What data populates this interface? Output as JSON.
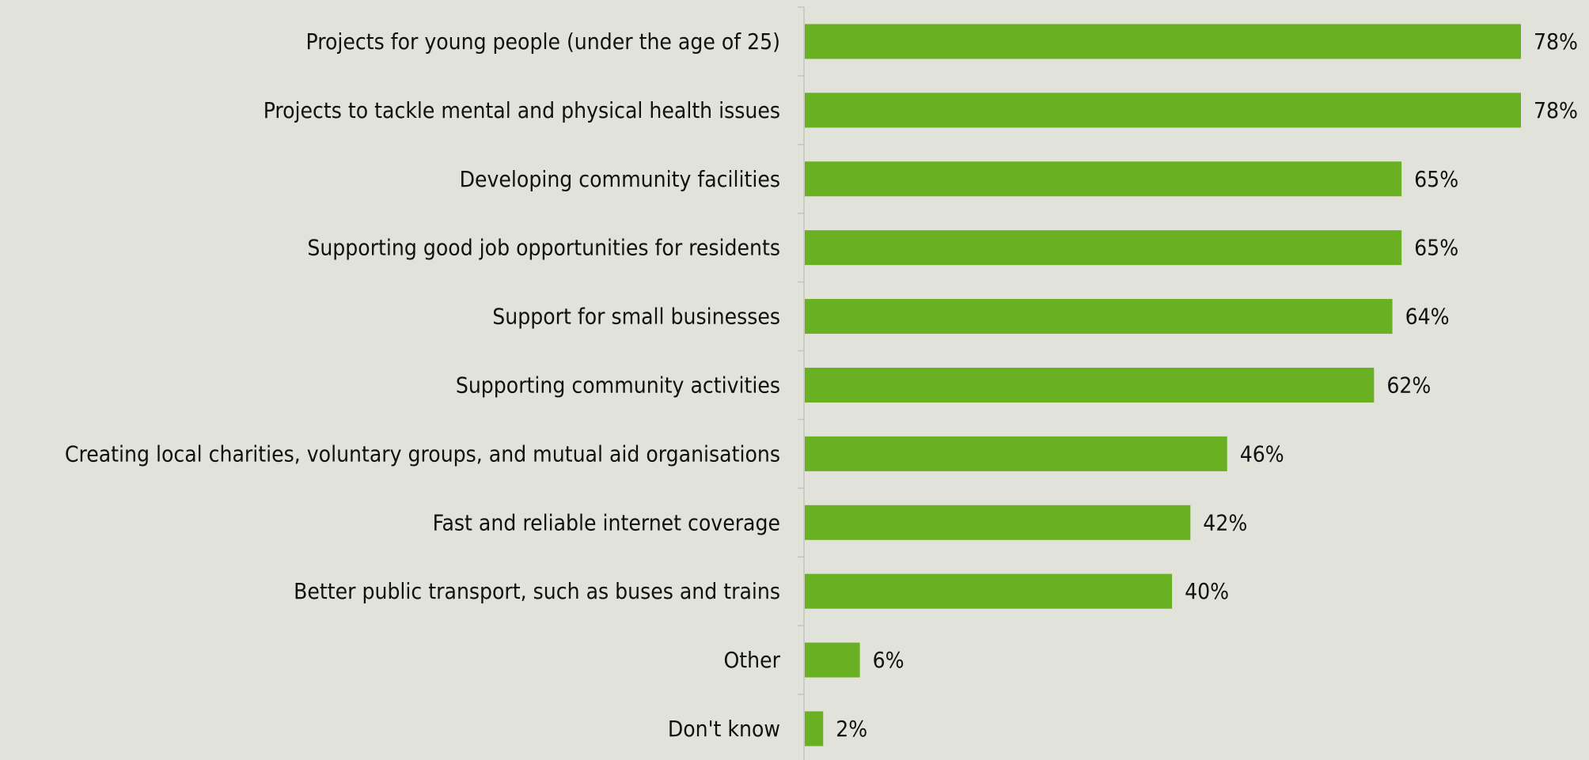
{
  "chart_data": {
    "type": "bar",
    "orientation": "horizontal",
    "title": "",
    "xlabel": "",
    "ylabel": "",
    "value_suffix": "%",
    "xlim": [
      0,
      78
    ],
    "grid": false,
    "bar_color": "#6ab023",
    "axis_color": "#c4c5bd",
    "background_color": "#e1e2da",
    "categories": [
      "Projects for young people (under the age of 25)",
      "Projects to tackle mental and physical health issues",
      "Developing community facilities",
      "Supporting good job opportunities for residents",
      "Support for small businesses",
      "Supporting community activities",
      "Creating local charities, voluntary groups, and mutual aid organisations",
      "Fast and reliable internet coverage",
      "Better public transport, such as buses and trains",
      "Other",
      "Don't know"
    ],
    "values": [
      78,
      78,
      65,
      65,
      64,
      62,
      46,
      42,
      40,
      6,
      2
    ],
    "value_labels": [
      "78%",
      "78%",
      "65%",
      "65%",
      "64%",
      "62%",
      "46%",
      "42%",
      "40%",
      "6%",
      "2%"
    ]
  }
}
